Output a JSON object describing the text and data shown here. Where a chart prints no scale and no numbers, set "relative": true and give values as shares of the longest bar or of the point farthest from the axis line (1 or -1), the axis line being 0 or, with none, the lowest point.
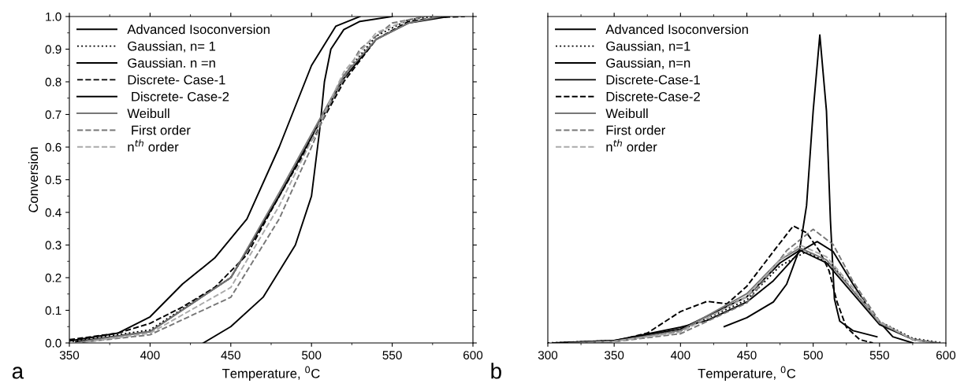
{
  "chart_data": [
    {
      "type": "line",
      "xlabel": "Temperature, $^{0}$C",
      "ylabel": "Conversion",
      "xlim": [
        350,
        600
      ],
      "ylim": [
        0,
        1
      ],
      "xticks": [
        350,
        400,
        450,
        500,
        550,
        600
      ],
      "yticks": [
        {
          "value": 0,
          "label": "0.0"
        },
        0.1,
        0.2,
        0.3,
        0.4,
        0.5,
        0.6,
        0.7,
        0.8,
        0.9,
        {
          "value": 1,
          "label": "1.0"
        }
      ],
      "legend": "top left",
      "grid": false,
      "annotations": [
        "a"
      ],
      "series": [
        {
          "name": "Advanced Isoconversion",
          "color": "#000000",
          "line_style": "solid",
          "x": [
            433,
            450,
            470,
            490,
            500,
            505,
            508,
            512,
            520,
            530,
            550
          ],
          "values": [
            0,
            0.05,
            0.14,
            0.3,
            0.45,
            0.65,
            0.8,
            0.9,
            0.96,
            0.985,
            1.0
          ]
        },
        {
          "name": "Gaussian, n= 1",
          "color": "#000000",
          "line_style": "dotted",
          "x": [
            352,
            400,
            450,
            480,
            500,
            520,
            540,
            560,
            575
          ],
          "values": [
            0.005,
            0.04,
            0.2,
            0.45,
            0.63,
            0.82,
            0.94,
            0.99,
            1.0
          ]
        },
        {
          "name": "Gaussian. n =n",
          "color": "#000000",
          "line_style": "solid",
          "x": [
            350,
            380,
            400,
            420,
            440,
            460,
            480,
            500,
            515,
            530
          ],
          "values": [
            0.006,
            0.03,
            0.08,
            0.18,
            0.26,
            0.38,
            0.6,
            0.85,
            0.97,
            1.0
          ]
        },
        {
          "name": "Discrete- Case-1",
          "color": "#000000",
          "line_style": "dashed",
          "x": [
            350,
            380,
            400,
            420,
            440,
            460,
            480,
            500,
            520,
            540,
            560,
            580,
            595
          ],
          "values": [
            0.01,
            0.03,
            0.06,
            0.11,
            0.17,
            0.27,
            0.45,
            0.62,
            0.8,
            0.93,
            0.985,
            0.998,
            1.0
          ]
        },
        {
          "name": " Discrete- Case-2",
          "color": "#000000",
          "line_style": "solid",
          "x": [
            354,
            400,
            450,
            480,
            500,
            520,
            540,
            560,
            585
          ],
          "values": [
            0.004,
            0.035,
            0.2,
            0.45,
            0.63,
            0.81,
            0.93,
            0.98,
            1.0
          ]
        },
        {
          "name": "Weibull",
          "color": "#777777",
          "line_style": "solid",
          "x": [
            356,
            400,
            450,
            480,
            500,
            520,
            540,
            560,
            580
          ],
          "values": [
            0.003,
            0.035,
            0.2,
            0.46,
            0.64,
            0.82,
            0.93,
            0.98,
            1.0
          ]
        },
        {
          "name": " First order",
          "color": "#777777",
          "line_style": "dashed",
          "x": [
            358,
            400,
            450,
            480,
            500,
            510,
            530,
            550,
            570
          ],
          "values": [
            0.002,
            0.025,
            0.14,
            0.38,
            0.6,
            0.72,
            0.9,
            0.98,
            1.0
          ]
        },
        {
          "name": "n$^{th}$ order",
          "color": "#aaaaaa",
          "line_style": "dashed",
          "x": [
            360,
            400,
            450,
            480,
            500,
            520,
            540,
            560
          ],
          "values": [
            0.003,
            0.03,
            0.17,
            0.42,
            0.62,
            0.83,
            0.95,
            0.99
          ]
        }
      ]
    },
    {
      "type": "line",
      "xlabel": "Temperature, $^{0}$C",
      "relative": true,
      "tick_labels": "x",
      "xlim": [
        300,
        600
      ],
      "xticks": [
        300,
        350,
        400,
        450,
        500,
        550,
        600
      ],
      "legend": "top left",
      "grid": false,
      "annotations": [
        "b"
      ],
      "series": [
        {
          "name": "Advanced Isoconversion",
          "color": "#000000",
          "line_style": "solid",
          "x": [
            433,
            450,
            470,
            480,
            490,
            495,
            500,
            505,
            510,
            513,
            516,
            520,
            530,
            548
          ],
          "values": [
            0.053,
            0.082,
            0.133,
            0.191,
            0.308,
            0.446,
            0.754,
            1.0,
            0.754,
            0.398,
            0.143,
            0.071,
            0.04,
            0.02
          ]
        },
        {
          "name": "Gaussian, n=1",
          "color": "#000000",
          "line_style": "dotted",
          "x": [
            300,
            350,
            400,
            450,
            475,
            495,
            515,
            530,
            550,
            575,
            598
          ],
          "values": [
            0,
            0.008,
            0.04,
            0.14,
            0.25,
            0.297,
            0.25,
            0.17,
            0.07,
            0.015,
            0
          ]
        },
        {
          "name": "Gaussian, n=n",
          "color": "#000000",
          "line_style": "solid",
          "x": [
            304,
            350,
            400,
            450,
            475,
            490,
            510,
            530,
            550,
            575,
            592
          ],
          "values": [
            0,
            0.008,
            0.045,
            0.15,
            0.26,
            0.301,
            0.26,
            0.16,
            0.06,
            0.012,
            0
          ]
        },
        {
          "name": "Discrete-Case-1",
          "color": "#000000",
          "line_style": "solid",
          "x": [
            308,
            350,
            400,
            420,
            450,
            470,
            490,
            503,
            515,
            530,
            545,
            560,
            575
          ],
          "values": [
            0,
            0.008,
            0.051,
            0.073,
            0.133,
            0.202,
            0.297,
            0.329,
            0.297,
            0.191,
            0.092,
            0.02,
            0
          ]
        },
        {
          "name": "Discrete-Case-2",
          "color": "#000000",
          "line_style": "dashed",
          "x": [
            312,
            350,
            375,
            400,
            420,
            435,
            450,
            470,
            485,
            495,
            505,
            512,
            518,
            525,
            535,
            545
          ],
          "values": [
            0,
            0.005,
            0.032,
            0.102,
            0.135,
            0.127,
            0.184,
            0.297,
            0.38,
            0.358,
            0.297,
            0.234,
            0.133,
            0.051,
            0.011,
            0
          ]
        },
        {
          "name": "Weibull",
          "color": "#777777",
          "line_style": "solid",
          "x": [
            316,
            350,
            400,
            450,
            475,
            490,
            510,
            530,
            550,
            575,
            595
          ],
          "values": [
            0,
            0.006,
            0.04,
            0.16,
            0.27,
            0.308,
            0.27,
            0.17,
            0.065,
            0.012,
            0
          ]
        },
        {
          "name": "First order",
          "color": "#777777",
          "line_style": "dashed",
          "x": [
            320,
            350,
            400,
            450,
            480,
            500,
            515,
            530,
            550,
            575,
            590
          ],
          "values": [
            0,
            0.004,
            0.03,
            0.13,
            0.3,
            0.369,
            0.32,
            0.2,
            0.07,
            0.01,
            0
          ]
        },
        {
          "name": "n$^{th}$ order",
          "color": "#aaaaaa",
          "line_style": "dashed",
          "x": [
            324,
            350,
            400,
            450,
            475,
            490,
            510,
            530,
            550,
            575,
            588
          ],
          "values": [
            0,
            0.005,
            0.035,
            0.15,
            0.27,
            0.318,
            0.28,
            0.18,
            0.068,
            0.012,
            0
          ]
        }
      ]
    }
  ]
}
